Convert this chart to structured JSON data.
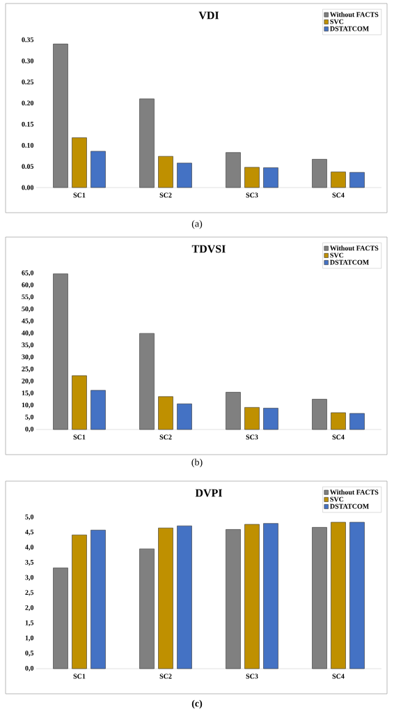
{
  "chart_data": [
    {
      "type": "bar",
      "title": "VDI",
      "categories": [
        "SC1",
        "SC2",
        "SC3",
        "SC4"
      ],
      "series": [
        {
          "name": "Without FACTS",
          "color": "#808080",
          "values": [
            0.34,
            0.21,
            0.083,
            0.067
          ]
        },
        {
          "name": "SVC",
          "color": "#bf9000",
          "values": [
            0.118,
            0.074,
            0.048,
            0.037
          ]
        },
        {
          "name": "DSTATCOM",
          "color": "#4472c4",
          "values": [
            0.086,
            0.058,
            0.047,
            0.036
          ]
        }
      ],
      "ylim": [
        0,
        0.35
      ],
      "yticks": [
        {
          "value": 0,
          "label": "0.00"
        },
        {
          "value": 0.05,
          "label": "0.05"
        },
        {
          "value": 0.1,
          "label": "0.10"
        },
        {
          "value": 0.15,
          "label": "0.15"
        },
        {
          "value": 0.2,
          "label": "0.20"
        },
        {
          "value": 0.25,
          "label": "0.25"
        },
        {
          "value": 0.3,
          "label": "0.30"
        },
        {
          "value": 0.35,
          "label": "0.35"
        }
      ],
      "legend": "top right",
      "annotations": [
        "(a)"
      ]
    },
    {
      "type": "bar",
      "title": "TDVSI",
      "categories": [
        "SC1",
        "SC2",
        "SC3",
        "SC4"
      ],
      "series": [
        {
          "name": "Without FACTS",
          "color": "#808080",
          "values": [
            64.8,
            40.0,
            15.5,
            12.6
          ]
        },
        {
          "name": "SVC",
          "color": "#bf9000",
          "values": [
            22.4,
            13.7,
            9.2,
            7.0
          ]
        },
        {
          "name": "DSTATCOM",
          "color": "#4472c4",
          "values": [
            16.3,
            10.7,
            8.9,
            6.7
          ]
        }
      ],
      "ylim": [
        0,
        65
      ],
      "yticks": [
        {
          "value": 0,
          "label": "0,0"
        },
        {
          "value": 5,
          "label": "5,0"
        },
        {
          "value": 10,
          "label": "10,0"
        },
        {
          "value": 15,
          "label": "15,0"
        },
        {
          "value": 20,
          "label": "20,0"
        },
        {
          "value": 25,
          "label": "25,0"
        },
        {
          "value": 30,
          "label": "30,0"
        },
        {
          "value": 35,
          "label": "35,0"
        },
        {
          "value": 40,
          "label": "40,0"
        },
        {
          "value": 45,
          "label": "45,0"
        },
        {
          "value": 50,
          "label": "50,0"
        },
        {
          "value": 55,
          "label": "55,0"
        },
        {
          "value": 60,
          "label": "60,0"
        },
        {
          "value": 65,
          "label": "65,0"
        }
      ],
      "legend": "top right",
      "annotations": [
        "(b)"
      ]
    },
    {
      "type": "bar",
      "title": "DVPI",
      "categories": [
        "SC1",
        "SC2",
        "SC3",
        "SC4"
      ],
      "series": [
        {
          "name": "Without FACTS",
          "color": "#808080",
          "values": [
            3.33,
            3.96,
            4.6,
            4.67
          ]
        },
        {
          "name": "SVC",
          "color": "#bf9000",
          "values": [
            4.42,
            4.65,
            4.77,
            4.84
          ]
        },
        {
          "name": "DSTATCOM",
          "color": "#4472c4",
          "values": [
            4.58,
            4.72,
            4.8,
            4.84
          ]
        }
      ],
      "ylim": [
        0,
        5
      ],
      "yticks": [
        {
          "value": 0,
          "label": "0,0"
        },
        {
          "value": 0.5,
          "label": "0,5"
        },
        {
          "value": 1,
          "label": "1,0"
        },
        {
          "value": 1.5,
          "label": "1,5"
        },
        {
          "value": 2,
          "label": "2,0"
        },
        {
          "value": 2.5,
          "label": "2,5"
        },
        {
          "value": 3,
          "label": "3,0"
        },
        {
          "value": 3.5,
          "label": "3,5"
        },
        {
          "value": 4,
          "label": "4,0"
        },
        {
          "value": 4.5,
          "label": "4,5"
        },
        {
          "value": 5,
          "label": "5,0"
        }
      ],
      "legend": "top right",
      "annotations": [
        "**(c)**"
      ]
    }
  ]
}
